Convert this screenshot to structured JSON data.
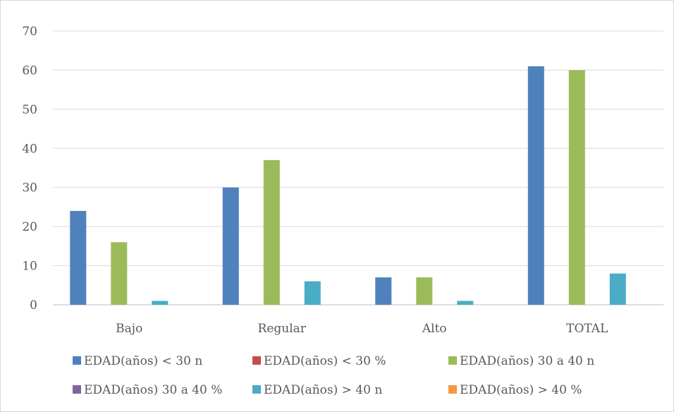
{
  "chart_data": {
    "type": "bar",
    "categories": [
      "Bajo",
      "Regular",
      "Alto",
      "TOTAL"
    ],
    "series": [
      {
        "name": "EDAD(años) < 30 n",
        "values": [
          24,
          30,
          7,
          61
        ],
        "color": "#4F81BD"
      },
      {
        "name": "EDAD(años) < 30 %",
        "values": [
          0,
          0,
          0,
          0
        ],
        "color": "#C0504D"
      },
      {
        "name": "EDAD(años) 30 a 40  n",
        "values": [
          16,
          37,
          7,
          60
        ],
        "color": "#9BBB59"
      },
      {
        "name": "EDAD(años) 30 a 40  %",
        "values": [
          0,
          0,
          0,
          0
        ],
        "color": "#8064A2"
      },
      {
        "name": "EDAD(años) > 40  n",
        "values": [
          1,
          6,
          1,
          8
        ],
        "color": "#4BACC6"
      },
      {
        "name": "EDAD(años) > 40  %",
        "values": [
          0,
          0,
          0,
          0
        ],
        "color": "#F79646"
      }
    ],
    "title": "",
    "xlabel": "",
    "ylabel": "",
    "ylim": [
      0,
      70
    ],
    "yticks": [
      0,
      10,
      20,
      30,
      40,
      50,
      60,
      70
    ],
    "grid": true,
    "legend_position": "bottom"
  }
}
